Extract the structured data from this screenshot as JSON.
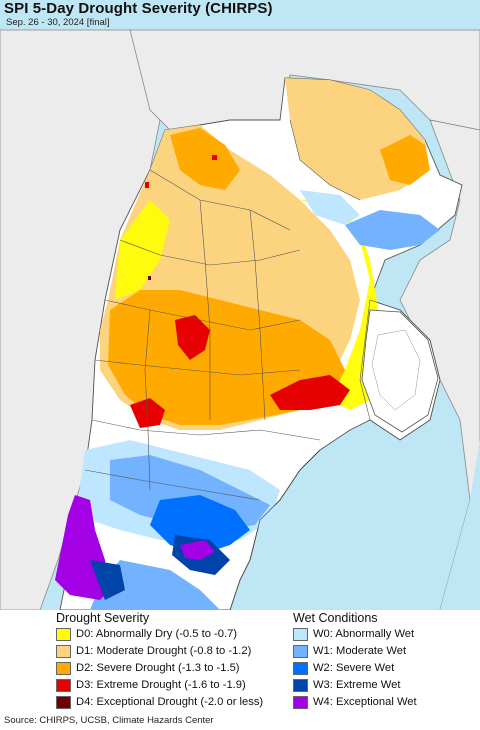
{
  "header": {
    "title": "SPI 5-Day Drought Severity (CHIRPS)",
    "subtitle": "Sep. 26 - 30, 2024 [final]"
  },
  "map": {
    "ocean_color": "#bfe6f5",
    "land_outside_color": "#ececec",
    "region_base_color": "#ffffff",
    "border_color": "#555555"
  },
  "legend": {
    "drought_heading": "Drought Severity",
    "wet_heading": "Wet Conditions",
    "drought": [
      {
        "code": "D0",
        "label": "D0: Abnormally Dry (-0.5 to -0.7)",
        "color": "#ffff00"
      },
      {
        "code": "D1",
        "label": "D1: Moderate Drought (-0.8 to -1.2)",
        "color": "#fcd37f"
      },
      {
        "code": "D2",
        "label": "D2: Severe Drought (-1.3 to -1.5)",
        "color": "#ffaa00"
      },
      {
        "code": "D3",
        "label": "D3: Extreme Drought (-1.6 to -1.9)",
        "color": "#e60000"
      },
      {
        "code": "D4",
        "label": "D4: Exceptional Drought (-2.0 or less)",
        "color": "#730000"
      }
    ],
    "wet": [
      {
        "code": "W0",
        "label": "W0: Abnormally Wet",
        "color": "#bfe6ff"
      },
      {
        "code": "W1",
        "label": "W1: Moderate Wet",
        "color": "#73b2ff"
      },
      {
        "code": "W2",
        "label": "W2: Severe Wet",
        "color": "#0070ff"
      },
      {
        "code": "W3",
        "label": "W3: Extreme Wet",
        "color": "#0044aa"
      },
      {
        "code": "W4",
        "label": "W4: Exceptional Wet",
        "color": "#a400e6"
      }
    ]
  },
  "footer": {
    "source": "Source: CHIRPS, UCSB, Climate Hazards Center"
  }
}
